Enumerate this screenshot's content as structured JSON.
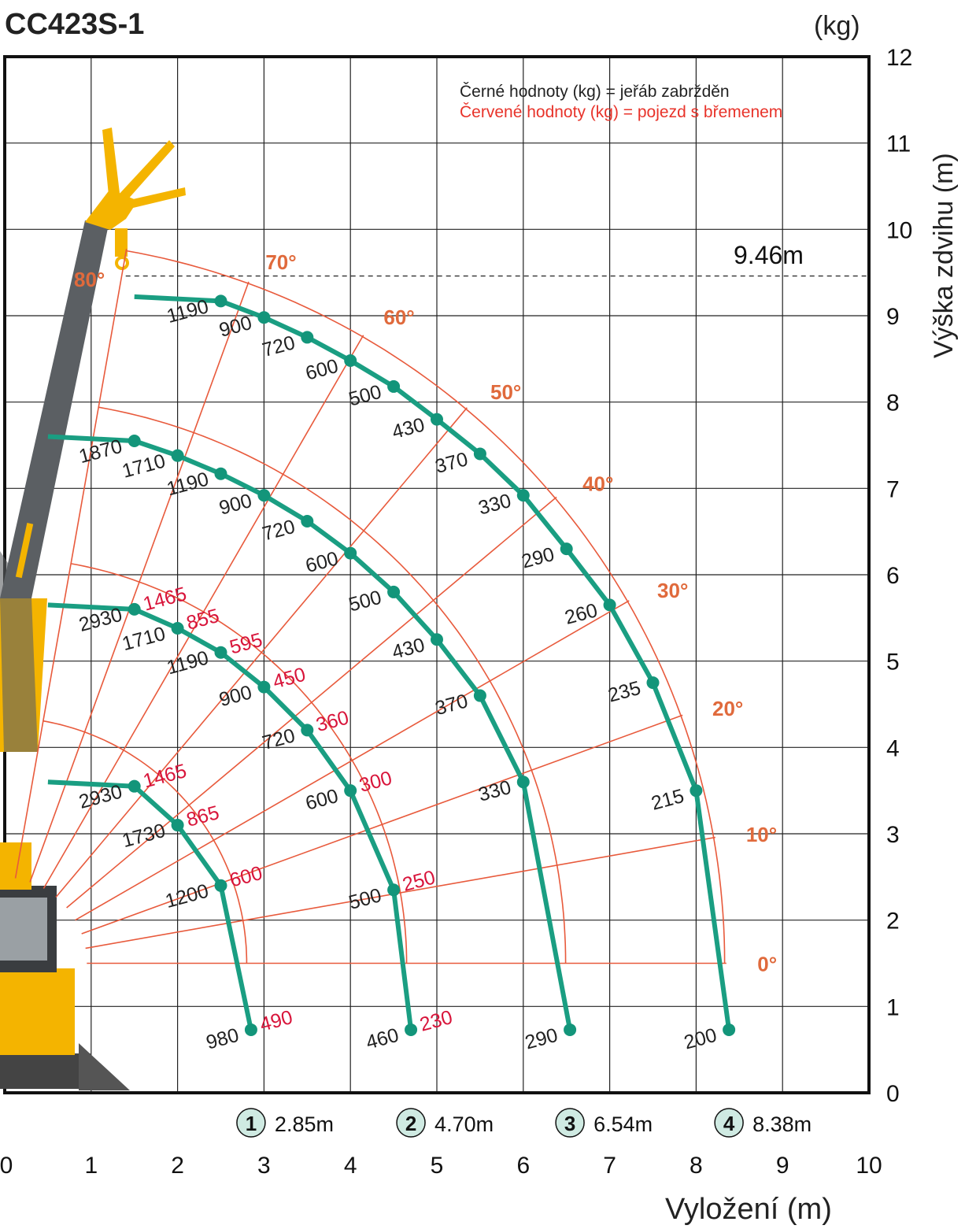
{
  "title": "CC423S-1",
  "unit_label": "(kg)",
  "ylabel": "Výška zdvihu (m)",
  "xlabel": "Vyložení (m)",
  "legend": {
    "black": "Černé hodnoty (kg) = jeřáb zabržděn",
    "red": "Červené hodnoty (kg) = pojezd s břemenem"
  },
  "max_height_label": "9.46m",
  "chart_data": {
    "type": "scatter",
    "xlim": [
      0,
      10
    ],
    "ylim": [
      0,
      12
    ],
    "x_ticks": [
      "0",
      "1",
      "2",
      "3",
      "4",
      "5",
      "6",
      "7",
      "8",
      "9",
      "10"
    ],
    "y_ticks": [
      "0",
      "1",
      "2",
      "3",
      "4",
      "5",
      "6",
      "7",
      "8",
      "9",
      "10",
      "11",
      "12"
    ],
    "max_height": 9.46,
    "angle_labels": [
      "0°",
      "10°",
      "20°",
      "30°",
      "40°",
      "50°",
      "60°",
      "70°",
      "80°"
    ],
    "booms": [
      {
        "id": "1",
        "label": "2.85m",
        "radius": 2.85
      },
      {
        "id": "2",
        "label": "4.70m",
        "radius": 4.7
      },
      {
        "id": "3",
        "label": "6.54m",
        "radius": 6.54
      },
      {
        "id": "4",
        "label": "8.38m",
        "radius": 8.38
      }
    ],
    "load_points": [
      {
        "boom": "1",
        "x": 2.85,
        "y": 0.73,
        "black": "980",
        "red": "490"
      },
      {
        "boom": "1",
        "x": 2.5,
        "y": 2.4,
        "black": "1200",
        "red": "600"
      },
      {
        "boom": "1",
        "x": 2.0,
        "y": 3.1,
        "black": "1730",
        "red": "865"
      },
      {
        "boom": "1",
        "x": 1.5,
        "y": 3.55,
        "black": "2930",
        "red": "1465"
      },
      {
        "boom": "2",
        "x": 4.7,
        "y": 0.73,
        "black": "460",
        "red": "230"
      },
      {
        "boom": "2",
        "x": 4.5,
        "y": 2.35,
        "black": "500",
        "red": "250"
      },
      {
        "boom": "2",
        "x": 4.0,
        "y": 3.5,
        "black": "600",
        "red": "300"
      },
      {
        "boom": "2",
        "x": 3.5,
        "y": 4.2,
        "black": "720",
        "red": "360"
      },
      {
        "boom": "2",
        "x": 3.0,
        "y": 4.7,
        "black": "900",
        "red": "450"
      },
      {
        "boom": "2",
        "x": 2.5,
        "y": 5.1,
        "black": "1190",
        "red": "595"
      },
      {
        "boom": "2",
        "x": 2.0,
        "y": 5.38,
        "black": "1710",
        "red": "855"
      },
      {
        "boom": "2",
        "x": 1.5,
        "y": 5.6,
        "black": "2930",
        "red": "1465"
      },
      {
        "boom": "3",
        "x": 6.54,
        "y": 0.73,
        "black": "290",
        "red": ""
      },
      {
        "boom": "3",
        "x": 6.0,
        "y": 3.6,
        "black": "330",
        "red": ""
      },
      {
        "boom": "3",
        "x": 5.5,
        "y": 4.6,
        "black": "370",
        "red": ""
      },
      {
        "boom": "3",
        "x": 5.0,
        "y": 5.25,
        "black": "430",
        "red": ""
      },
      {
        "boom": "3",
        "x": 4.5,
        "y": 5.8,
        "black": "500",
        "red": ""
      },
      {
        "boom": "3",
        "x": 4.0,
        "y": 6.25,
        "black": "600",
        "red": ""
      },
      {
        "boom": "3",
        "x": 3.5,
        "y": 6.62,
        "black": "720",
        "red": ""
      },
      {
        "boom": "3",
        "x": 3.0,
        "y": 6.92,
        "black": "900",
        "red": ""
      },
      {
        "boom": "3",
        "x": 2.5,
        "y": 7.17,
        "black": "1190",
        "red": ""
      },
      {
        "boom": "3",
        "x": 2.0,
        "y": 7.38,
        "black": "1710",
        "red": ""
      },
      {
        "boom": "3",
        "x": 1.5,
        "y": 7.55,
        "black": "1870",
        "red": ""
      },
      {
        "boom": "4",
        "x": 8.38,
        "y": 0.73,
        "black": "200",
        "red": ""
      },
      {
        "boom": "4",
        "x": 8.0,
        "y": 3.5,
        "black": "215",
        "red": ""
      },
      {
        "boom": "4",
        "x": 7.5,
        "y": 4.75,
        "black": "235",
        "red": ""
      },
      {
        "boom": "4",
        "x": 7.0,
        "y": 5.65,
        "black": "260",
        "red": ""
      },
      {
        "boom": "4",
        "x": 6.5,
        "y": 6.3,
        "black": "290",
        "red": ""
      },
      {
        "boom": "4",
        "x": 6.0,
        "y": 6.92,
        "black": "330",
        "red": ""
      },
      {
        "boom": "4",
        "x": 5.5,
        "y": 7.4,
        "black": "370",
        "red": ""
      },
      {
        "boom": "4",
        "x": 5.0,
        "y": 7.8,
        "black": "430",
        "red": ""
      },
      {
        "boom": "4",
        "x": 4.5,
        "y": 8.18,
        "black": "500",
        "red": ""
      },
      {
        "boom": "4",
        "x": 4.0,
        "y": 8.48,
        "black": "600",
        "red": ""
      },
      {
        "boom": "4",
        "x": 3.5,
        "y": 8.75,
        "black": "720",
        "red": ""
      },
      {
        "boom": "4",
        "x": 3.0,
        "y": 8.98,
        "black": "900",
        "red": ""
      },
      {
        "boom": "4",
        "x": 2.5,
        "y": 9.17,
        "black": "1190",
        "red": ""
      }
    ],
    "colors": {
      "curve": "#1a9e82",
      "point": "#13957a",
      "angle_grid": "#e85a3c",
      "angle_label": "#e06a3c",
      "red_value": "#d8143a",
      "black_value": "#222222",
      "grid": "#222222",
      "badge_fill": "#cfeae2",
      "boom_yellow": "#f4b400",
      "boom_gray": "#5b5f63"
    }
  }
}
